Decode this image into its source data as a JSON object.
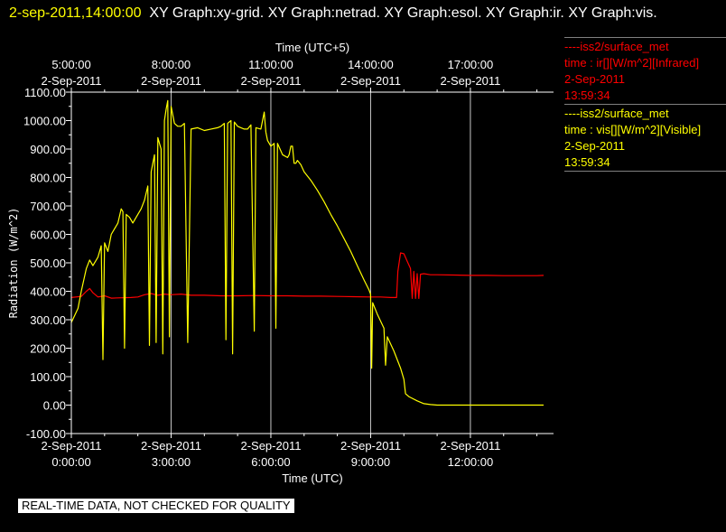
{
  "header": {
    "date_time": "2-sep-2011,14:00:00",
    "graphs": "XY Graph:xy-grid.  XY Graph:netrad.  XY Graph:esol.  XY Graph:ir.  XY Graph:vis."
  },
  "legend": {
    "entries": [
      {
        "color": "#ff0000",
        "lines": [
          "----iss2/surface_met",
          "time : ir[][W/m^2][Infrared]",
          "2-Sep-2011",
          "13:59:34"
        ]
      },
      {
        "color": "#ffff00",
        "lines": [
          "----iss2/surface_met",
          "time : vis[][W/m^2][Visible]",
          "2-Sep-2011",
          "13:59:34"
        ]
      }
    ]
  },
  "notice": "REAL-TIME DATA, NOT CHECKED FOR QUALITY",
  "colors": {
    "background": "#000000",
    "axes": "#ffffff",
    "grid": "#c8c8c8",
    "ir": "#ff0000",
    "vis": "#ffff00"
  },
  "chart_data": {
    "type": "line",
    "xlabel": "Time (UTC)",
    "x2label": "Time (UTC+5)",
    "ylabel": "Radiation (W/m^2)",
    "xlim": [
      0,
      14.5
    ],
    "ylim": [
      -100,
      1100
    ],
    "grid": true,
    "yticks": [
      "-100.00",
      "0.00",
      "100.00",
      "200.00",
      "300.00",
      "400.00",
      "500.00",
      "600.00",
      "700.00",
      "800.00",
      "900.00",
      "1000.00",
      "1100.00"
    ],
    "xticks": [
      {
        "x": 0,
        "date": "2-Sep-2011",
        "time": "0:00:00"
      },
      {
        "x": 3,
        "date": "2-Sep-2011",
        "time": "3:00:00"
      },
      {
        "x": 6,
        "date": "2-Sep-2011",
        "time": "6:00:00"
      },
      {
        "x": 9,
        "date": "2-Sep-2011",
        "time": "9:00:00"
      },
      {
        "x": 12,
        "date": "2-Sep-2011",
        "time": "12:00:00"
      }
    ],
    "x2ticks": [
      {
        "x": 0,
        "time": "5:00:00",
        "date": "2-Sep-2011"
      },
      {
        "x": 3,
        "time": "8:00:00",
        "date": "2-Sep-2011"
      },
      {
        "x": 6,
        "time": "11:00:00",
        "date": "2-Sep-2011"
      },
      {
        "x": 9,
        "time": "14:00:00",
        "date": "2-Sep-2011"
      },
      {
        "x": 12,
        "time": "17:00:00",
        "date": "2-Sep-2011"
      }
    ],
    "series": [
      {
        "key": "ir",
        "color": "#ff0000",
        "points": [
          [
            0.0,
            378
          ],
          [
            0.3,
            382
          ],
          [
            0.45,
            400
          ],
          [
            0.55,
            410
          ],
          [
            0.65,
            395
          ],
          [
            0.8,
            380
          ],
          [
            1.0,
            384
          ],
          [
            1.2,
            376
          ],
          [
            1.5,
            377
          ],
          [
            1.8,
            378
          ],
          [
            2.0,
            380
          ],
          [
            2.2,
            388
          ],
          [
            2.4,
            392
          ],
          [
            2.6,
            386
          ],
          [
            2.8,
            390
          ],
          [
            3.0,
            388
          ],
          [
            3.3,
            390
          ],
          [
            3.6,
            386
          ],
          [
            4.0,
            386
          ],
          [
            4.5,
            384
          ],
          [
            5.0,
            384
          ],
          [
            5.5,
            385
          ],
          [
            6.0,
            384
          ],
          [
            6.5,
            384
          ],
          [
            7.0,
            383
          ],
          [
            7.5,
            383
          ],
          [
            8.0,
            382
          ],
          [
            8.5,
            381
          ],
          [
            9.0,
            380
          ],
          [
            9.3,
            380
          ],
          [
            9.6,
            378
          ],
          [
            9.78,
            378
          ],
          [
            9.82,
            470
          ],
          [
            9.9,
            535
          ],
          [
            10.0,
            532
          ],
          [
            10.1,
            505
          ],
          [
            10.2,
            480
          ],
          [
            10.25,
            375
          ],
          [
            10.3,
            470
          ],
          [
            10.35,
            375
          ],
          [
            10.4,
            462
          ],
          [
            10.45,
            375
          ],
          [
            10.5,
            460
          ],
          [
            10.6,
            462
          ],
          [
            10.8,
            458
          ],
          [
            11.0,
            458
          ],
          [
            11.5,
            457
          ],
          [
            12.0,
            456
          ],
          [
            12.5,
            456
          ],
          [
            13.0,
            455
          ],
          [
            13.5,
            455
          ],
          [
            14.0,
            455
          ],
          [
            14.2,
            456
          ]
        ]
      },
      {
        "key": "vis",
        "color": "#ffff00",
        "points": [
          [
            0.0,
            290
          ],
          [
            0.2,
            340
          ],
          [
            0.3,
            400
          ],
          [
            0.45,
            480
          ],
          [
            0.55,
            510
          ],
          [
            0.65,
            490
          ],
          [
            0.8,
            520
          ],
          [
            0.9,
            560
          ],
          [
            0.95,
            160
          ],
          [
            1.0,
            570
          ],
          [
            1.1,
            540
          ],
          [
            1.2,
            600
          ],
          [
            1.4,
            640
          ],
          [
            1.5,
            690
          ],
          [
            1.55,
            680
          ],
          [
            1.6,
            200
          ],
          [
            1.65,
            670
          ],
          [
            1.75,
            660
          ],
          [
            1.85,
            640
          ],
          [
            1.95,
            660
          ],
          [
            2.1,
            690
          ],
          [
            2.2,
            720
          ],
          [
            2.3,
            770
          ],
          [
            2.35,
            210
          ],
          [
            2.4,
            820
          ],
          [
            2.5,
            880
          ],
          [
            2.55,
            220
          ],
          [
            2.6,
            940
          ],
          [
            2.7,
            900
          ],
          [
            2.75,
            180
          ],
          [
            2.8,
            1000
          ],
          [
            2.85,
            1040
          ],
          [
            2.9,
            1070
          ],
          [
            2.95,
            240
          ],
          [
            3.0,
            1050
          ],
          [
            3.1,
            990
          ],
          [
            3.2,
            980
          ],
          [
            3.3,
            980
          ],
          [
            3.4,
            990
          ],
          [
            3.5,
            220
          ],
          [
            3.6,
            970
          ],
          [
            3.8,
            975
          ],
          [
            4.0,
            965
          ],
          [
            4.2,
            970
          ],
          [
            4.4,
            975
          ],
          [
            4.5,
            980
          ],
          [
            4.6,
            990
          ],
          [
            4.65,
            230
          ],
          [
            4.7,
            990
          ],
          [
            4.8,
            1000
          ],
          [
            4.85,
            180
          ],
          [
            4.9,
            995
          ],
          [
            5.0,
            980
          ],
          [
            5.1,
            975
          ],
          [
            5.2,
            970
          ],
          [
            5.3,
            970
          ],
          [
            5.4,
            985
          ],
          [
            5.5,
            260
          ],
          [
            5.55,
            975
          ],
          [
            5.7,
            970
          ],
          [
            5.8,
            1030
          ],
          [
            5.85,
            960
          ],
          [
            5.9,
            930
          ],
          [
            6.0,
            910
          ],
          [
            6.1,
            920
          ],
          [
            6.15,
            270
          ],
          [
            6.2,
            920
          ],
          [
            6.35,
            880
          ],
          [
            6.5,
            870
          ],
          [
            6.55,
            880
          ],
          [
            6.6,
            910
          ],
          [
            6.65,
            910
          ],
          [
            6.7,
            850
          ],
          [
            6.75,
            850
          ],
          [
            6.8,
            860
          ],
          [
            6.9,
            845
          ],
          [
            7.0,
            820
          ],
          [
            7.2,
            790
          ],
          [
            7.4,
            755
          ],
          [
            7.6,
            715
          ],
          [
            7.8,
            670
          ],
          [
            8.0,
            630
          ],
          [
            8.2,
            585
          ],
          [
            8.4,
            540
          ],
          [
            8.6,
            490
          ],
          [
            8.8,
            440
          ],
          [
            8.95,
            405
          ],
          [
            9.0,
            390
          ],
          [
            9.03,
            130
          ],
          [
            9.06,
            360
          ],
          [
            9.2,
            320
          ],
          [
            9.4,
            270
          ],
          [
            9.45,
            140
          ],
          [
            9.5,
            240
          ],
          [
            9.7,
            190
          ],
          [
            9.9,
            130
          ],
          [
            10.0,
            90
          ],
          [
            10.05,
            40
          ],
          [
            10.15,
            30
          ],
          [
            10.4,
            15
          ],
          [
            10.6,
            5
          ],
          [
            10.8,
            2
          ],
          [
            11.0,
            0
          ],
          [
            12.0,
            0
          ],
          [
            13.0,
            0
          ],
          [
            14.0,
            0
          ],
          [
            14.2,
            0
          ]
        ]
      }
    ]
  }
}
